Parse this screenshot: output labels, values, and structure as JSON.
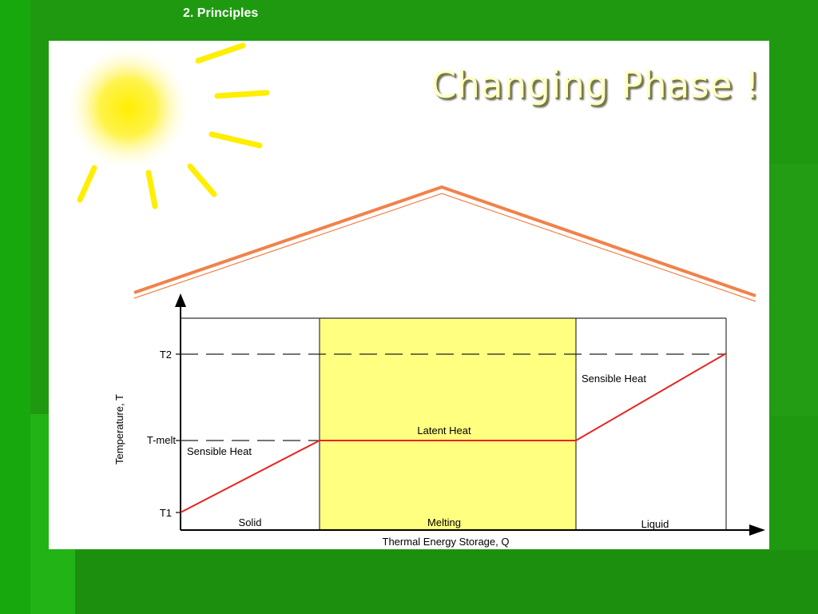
{
  "header": {
    "section_label": "2. Principles"
  },
  "slide": {
    "title": "Changing Phase !"
  },
  "diagram": {
    "axis_labels": {
      "y": "Temperature, T",
      "x": "Thermal Energy Storage, Q"
    },
    "y_ticks": {
      "t2": "T2",
      "tmelt": "T-melt",
      "t1": "T1"
    },
    "regions": {
      "solid": "Solid",
      "melting": "Melting",
      "liquid": "Liquid"
    },
    "annotations": {
      "sensible_left": "Sensible Heat",
      "latent": "Latent Heat",
      "sensible_right": "Sensible Heat"
    },
    "colors": {
      "curve": "#e8231e",
      "melting_fill": "#ffff80",
      "roof": "#f0824a",
      "sun": "#ffee00"
    }
  }
}
